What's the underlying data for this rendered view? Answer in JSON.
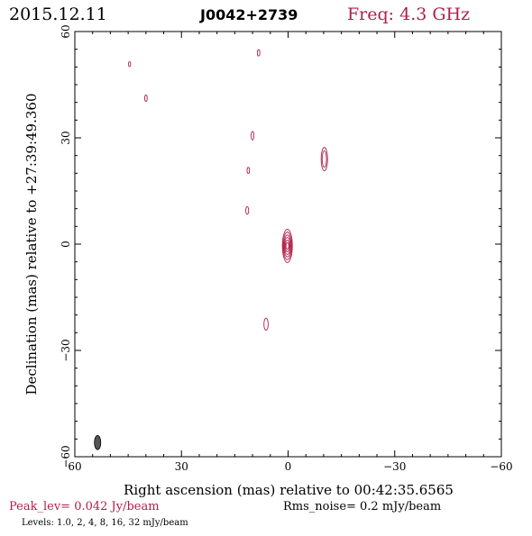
{
  "header": {
    "date": "2015.12.11",
    "source": "J0042+2739",
    "freq": "Freq: 4.3 GHz"
  },
  "colors": {
    "contour": "#b0204a",
    "beam": "#555555",
    "axis": "#000000"
  },
  "chart_data": {
    "type": "contour",
    "xlabel": "Right ascension (mas) relative to 00:42:35.6565",
    "ylabel": "Declination (mas) relative to +27:39:49.360",
    "xlim": [
      60,
      -60
    ],
    "ylim": [
      -60,
      60
    ],
    "x_ticks": [
      60,
      30,
      0,
      -30,
      -60
    ],
    "y_ticks": [
      60,
      30,
      0,
      -30,
      -60
    ],
    "x_tick_labels": [
      "60",
      "30",
      "0",
      "−30",
      "−60"
    ],
    "y_tick_labels": [
      "60",
      "30",
      "0",
      "−30",
      "−60"
    ],
    "peak_level": "Peak_lev=  0.042 Jy/beam",
    "rms_noise": "Rms_noise=   0.2 mJy/beam",
    "levels_text": "Levels: 1.0,    2,    4,    8,   16,   32 mJy/beam",
    "levels_mjy": [
      1.0,
      2,
      4,
      8,
      16,
      32
    ],
    "components": [
      {
        "x": 0.2,
        "y": -0.5,
        "contours": [
          [
            1.4,
            4.7
          ],
          [
            1.2,
            3.9
          ],
          [
            1.0,
            3.1
          ],
          [
            0.8,
            2.4
          ],
          [
            0.6,
            1.6
          ],
          [
            0.4,
            0.9
          ]
        ]
      },
      {
        "x": -10.2,
        "y": 24.0,
        "contours": [
          [
            0.9,
            3.3
          ],
          [
            0.6,
            2.3
          ]
        ]
      },
      {
        "x": 6.2,
        "y": -22.6,
        "contours": [
          [
            0.6,
            1.7
          ]
        ]
      },
      {
        "x": 11.5,
        "y": 9.5,
        "contours": [
          [
            0.4,
            1.1
          ]
        ]
      },
      {
        "x": 11.2,
        "y": 20.8,
        "contours": [
          [
            0.35,
            0.9
          ]
        ]
      },
      {
        "x": 10.0,
        "y": 30.6,
        "contours": [
          [
            0.4,
            1.2
          ]
        ]
      },
      {
        "x": 8.3,
        "y": 54.0,
        "contours": [
          [
            0.35,
            0.9
          ]
        ]
      },
      {
        "x": 40.0,
        "y": 41.2,
        "contours": [
          [
            0.35,
            0.9
          ]
        ]
      },
      {
        "x": 44.6,
        "y": 50.8,
        "contours": [
          [
            0.3,
            0.7
          ]
        ]
      }
    ],
    "beam": {
      "x": 53.6,
      "y": -56.0,
      "major": 2.0,
      "minor": 0.9
    }
  }
}
